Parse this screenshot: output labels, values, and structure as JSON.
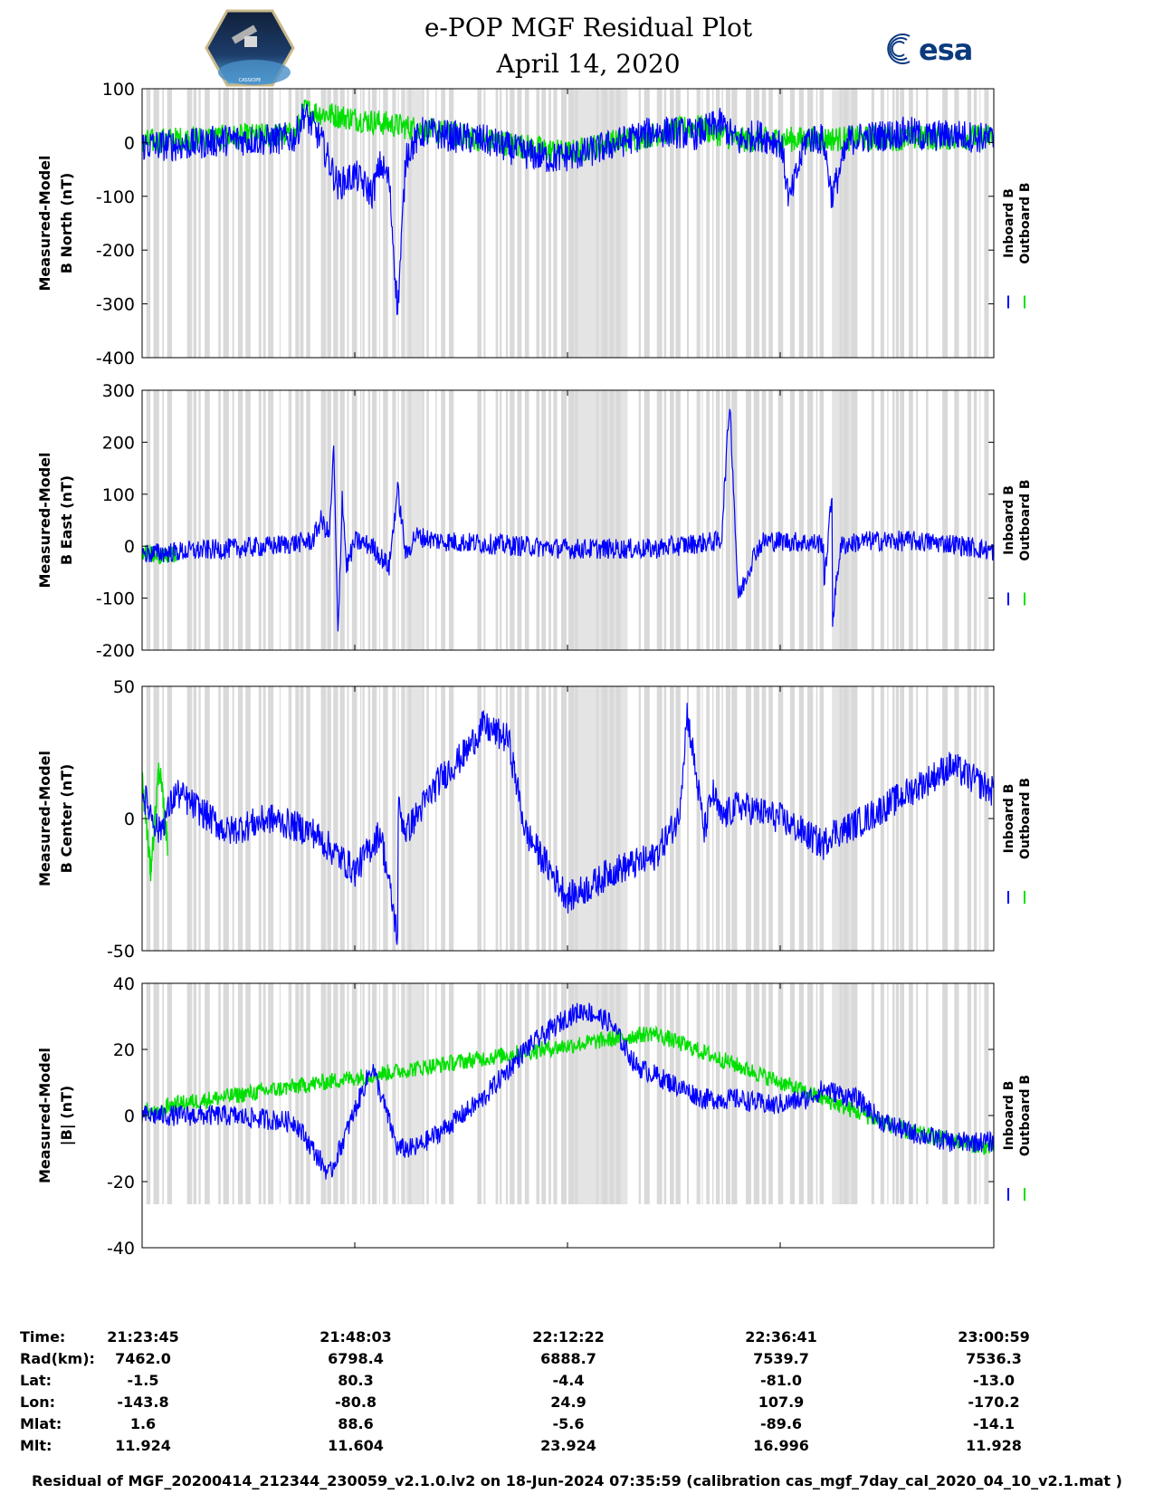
{
  "header": {
    "title_line1": "e-POP MGF Residual Plot",
    "title_line2": "April 14, 2020",
    "logo_left_name": "cassiope-mission-logo",
    "logo_right_text": "esa"
  },
  "legend": {
    "inboard": "Inboard B",
    "outboard": "Outboard B"
  },
  "colors": {
    "inboard": "#0000ff",
    "outboard": "#00e000",
    "gap_shade": "#d9d9d9",
    "background": "#ffffff"
  },
  "chart_data": [
    {
      "type": "line",
      "ylabel": "Measured-Model",
      "ylabel2": "B North (nT)",
      "ylim": [
        -400,
        100
      ],
      "yticks": [
        100,
        0,
        -100,
        -200,
        -300,
        -400
      ],
      "ytick_labels": [
        "100",
        "0",
        "-100",
        "-200",
        "-300",
        "-400"
      ],
      "grid": false,
      "series": [
        {
          "name": "Inboard B",
          "x": [
            0,
            0.05,
            0.1,
            0.15,
            0.18,
            0.19,
            0.21,
            0.23,
            0.25,
            0.27,
            0.28,
            0.29,
            0.3,
            0.31,
            0.33,
            0.35,
            0.37,
            0.4,
            0.45,
            0.48,
            0.5,
            0.52,
            0.55,
            0.58,
            0.6,
            0.62,
            0.65,
            0.67,
            0.68,
            0.7,
            0.72,
            0.74,
            0.75,
            0.76,
            0.78,
            0.8,
            0.81,
            0.83,
            0.85,
            0.88,
            0.9,
            0.92,
            0.95,
            0.98,
            1
          ],
          "y": [
            -5,
            -5,
            5,
            5,
            10,
            55,
            5,
            -80,
            -60,
            -95,
            -40,
            -70,
            -315,
            -20,
            20,
            15,
            10,
            5,
            -20,
            -30,
            -25,
            -20,
            -5,
            10,
            20,
            20,
            15,
            30,
            35,
            0,
            15,
            5,
            0,
            -110,
            10,
            5,
            -100,
            5,
            10,
            15,
            20,
            10,
            15,
            10,
            5
          ]
        },
        {
          "name": "Outboard B",
          "x": [
            0,
            0.03,
            0.18,
            0.19,
            0.5,
            0.55,
            0.65,
            0.7,
            1
          ],
          "y": [
            0,
            5,
            15,
            60,
            -20,
            0,
            30,
            5,
            10
          ]
        }
      ]
    },
    {
      "type": "line",
      "ylabel": "Measured-Model",
      "ylabel2": "B East (nT)",
      "ylim": [
        -200,
        300
      ],
      "yticks": [
        300,
        200,
        100,
        0,
        -100,
        -200
      ],
      "ytick_labels": [
        "300",
        "200",
        "100",
        "0",
        "-100",
        "-200"
      ],
      "grid": false,
      "series": [
        {
          "name": "Inboard B",
          "x": [
            0,
            0.05,
            0.1,
            0.15,
            0.2,
            0.21,
            0.22,
            0.225,
            0.23,
            0.235,
            0.24,
            0.25,
            0.27,
            0.29,
            0.3,
            0.31,
            0.32,
            0.35,
            0.4,
            0.5,
            0.6,
            0.65,
            0.68,
            0.69,
            0.7,
            0.72,
            0.73,
            0.75,
            0.8,
            0.8,
            0.81,
            0.81,
            0.82,
            0.83,
            0.85,
            0.9,
            0.95,
            1
          ],
          "y": [
            -15,
            -10,
            -5,
            0,
            10,
            50,
            20,
            190,
            -180,
            100,
            -40,
            10,
            0,
            -40,
            110,
            -20,
            20,
            10,
            5,
            -5,
            -5,
            5,
            10,
            280,
            -100,
            -10,
            10,
            10,
            5,
            -90,
            100,
            -150,
            0,
            5,
            10,
            10,
            5,
            -10
          ]
        },
        {
          "name": "Outboard B",
          "x": [
            0,
            0.02,
            0.04
          ],
          "y": [
            -10,
            -20,
            -15
          ]
        }
      ]
    },
    {
      "type": "line",
      "ylabel": "Measured-Model",
      "ylabel2": "B Center (nT)",
      "ylim": [
        -50,
        50
      ],
      "yticks": [
        50,
        0,
        -50
      ],
      "ytick_labels": [
        "50",
        "0",
        "-50"
      ],
      "grid": false,
      "series": [
        {
          "name": "Inboard B",
          "x": [
            0,
            0.02,
            0.04,
            0.1,
            0.15,
            0.2,
            0.25,
            0.28,
            0.3,
            0.3,
            0.31,
            0.35,
            0.38,
            0.4,
            0.43,
            0.45,
            0.48,
            0.5,
            0.53,
            0.55,
            0.6,
            0.63,
            0.64,
            0.66,
            0.67,
            0.68,
            0.7,
            0.75,
            0.8,
            0.81,
            0.82,
            0.85,
            0.9,
            0.95,
            1
          ],
          "y": [
            10,
            -5,
            10,
            -5,
            0,
            -5,
            -20,
            -5,
            -45,
            5,
            -5,
            15,
            25,
            35,
            30,
            -5,
            -20,
            -30,
            -25,
            -20,
            -15,
            0,
            40,
            -5,
            10,
            0,
            5,
            0,
            -10,
            -5,
            -5,
            0,
            10,
            20,
            10
          ]
        },
        {
          "name": "Outboard B",
          "x": [
            0,
            0.01,
            0.02,
            0.03
          ],
          "y": [
            15,
            -20,
            20,
            -10
          ]
        }
      ]
    },
    {
      "type": "line",
      "ylabel": "Measured-Model",
      "ylabel2": "|B| (nT)",
      "ylim": [
        -40,
        40
      ],
      "yticks": [
        40,
        20,
        0,
        -20,
        -40
      ],
      "ytick_labels": [
        "40",
        "20",
        "0",
        "-20",
        "-40"
      ],
      "grid": false,
      "xticks": [
        0,
        0.25,
        0.5,
        0.75,
        1
      ],
      "series": [
        {
          "name": "Inboard B",
          "x": [
            0,
            0.1,
            0.18,
            0.22,
            0.24,
            0.27,
            0.3,
            0.32,
            0.35,
            0.4,
            0.45,
            0.5,
            0.52,
            0.55,
            0.58,
            0.62,
            0.66,
            0.7,
            0.74,
            0.78,
            0.8,
            0.84,
            0.87,
            0.9,
            0.95,
            1
          ],
          "y": [
            0,
            0,
            -2,
            -18,
            -5,
            15,
            -10,
            -10,
            -5,
            5,
            20,
            30,
            32,
            28,
            15,
            10,
            5,
            5,
            3,
            5,
            8,
            5,
            -2,
            -5,
            -8,
            -8
          ]
        },
        {
          "name": "Outboard B",
          "x": [
            0,
            0.02,
            0.03,
            0.6,
            0.75,
            0.9,
            1
          ],
          "y": [
            2,
            0,
            3,
            25,
            10,
            -5,
            -10
          ]
        }
      ]
    }
  ],
  "ephemeris": {
    "labels": [
      "Time:",
      "Rad(km):",
      "Lat:",
      "Lon:",
      "Mlat:",
      "Mlt:"
    ],
    "columns": [
      [
        "21:23:45",
        "7462.0",
        "-1.5",
        "-143.8",
        "1.6",
        "11.924"
      ],
      [
        "21:48:03",
        "6798.4",
        "80.3",
        "-80.8",
        "88.6",
        "11.604"
      ],
      [
        "22:12:22",
        "6888.7",
        "-4.4",
        "24.9",
        "-5.6",
        "23.924"
      ],
      [
        "22:36:41",
        "7539.7",
        "-81.0",
        "107.9",
        "-89.6",
        "16.996"
      ],
      [
        "23:00:59",
        "7536.3",
        "-13.0",
        "-170.2",
        "-14.1",
        "11.928"
      ]
    ]
  },
  "footer": "Residual of MGF_20200414_212344_230059_v2.1.0.lv2 on 18-Jun-2024 07:35:59 (calibration cas_mgf_7day_cal_2020_04_10_v2.1.mat )"
}
